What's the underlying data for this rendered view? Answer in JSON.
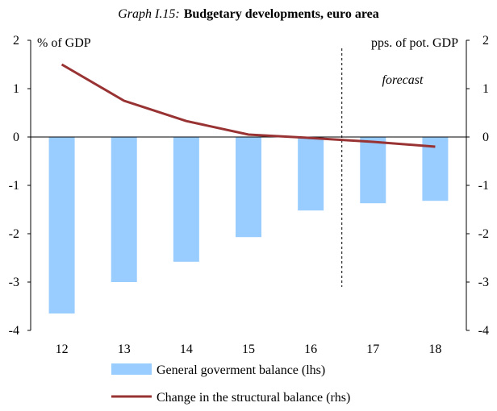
{
  "title_prefix": "Graph I.15:",
  "title_main": "Budgetary developments, euro area",
  "chart_data": {
    "type": "bar",
    "categories": [
      "12",
      "13",
      "14",
      "15",
      "16",
      "17",
      "18"
    ],
    "series": [
      {
        "name": "General goverment balance (lhs)",
        "type": "bar",
        "axis": "left",
        "color": "#99ccff",
        "values": [
          -3.65,
          -3.0,
          -2.58,
          -2.07,
          -1.52,
          -1.37,
          -1.32
        ]
      },
      {
        "name": "Change in the structural balance (rhs)",
        "type": "line",
        "axis": "right",
        "color": "#993333",
        "values": [
          1.5,
          0.75,
          0.33,
          0.05,
          -0.02,
          -0.1,
          -0.2
        ]
      }
    ],
    "ylim_left": [
      -4,
      2
    ],
    "ylim_right": [
      -4,
      2
    ],
    "yticks": [
      2,
      1,
      0,
      -1,
      -2,
      -3,
      -4
    ],
    "ylabel_left": "% of GDP",
    "ylabel_right": "pps. of pot. GDP",
    "annotation": "forecast",
    "forecast_divider_after": "16",
    "legend_position": "bottom"
  }
}
